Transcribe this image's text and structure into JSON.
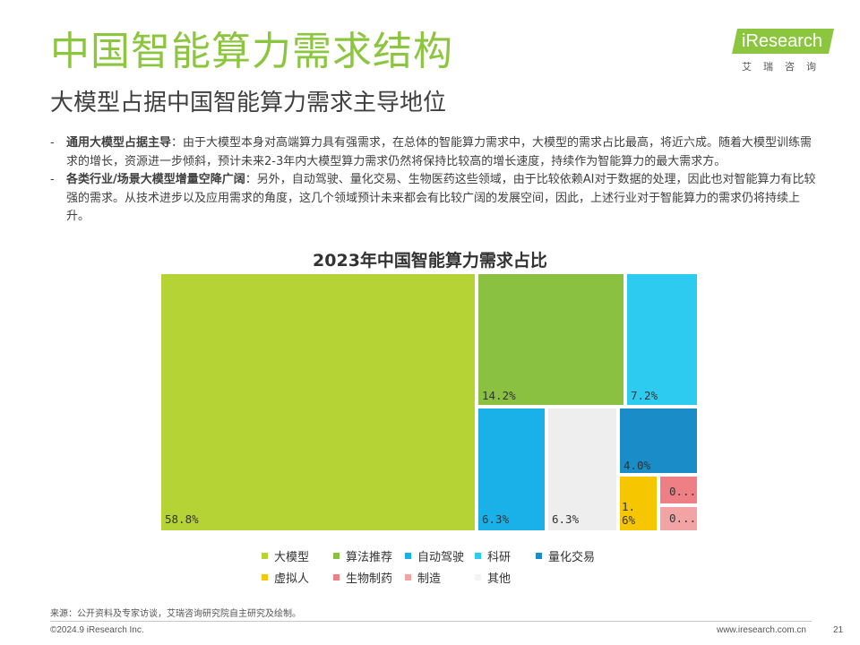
{
  "header": {
    "title": "中国智能算力需求结构",
    "subtitle": "大模型占据中国智能算力需求主导地位"
  },
  "logo": {
    "brand": "iResearch",
    "chinese": "艾瑞咨询"
  },
  "bullets": [
    {
      "dash": "-",
      "lead": "通用大模型占据主导",
      "text": "：由于大模型本身对高端算力具有强需求，在总体的智能算力需求中，大模型的需求占比最高，将近六成。随着大模型训练需求的增长，资源进一步倾斜，预计未来2-3年内大模型算力需求仍然将保持比较高的增长速度，持续作为智能算力的最大需求方。"
    },
    {
      "dash": "-",
      "lead": "各类行业/场景大模型增量空降广阔",
      "text": "：另外，自动驾驶、量化交易、生物医药这些领域，由于比较依赖AI对于数据的处理，因此也对智能算力有比较强的需求。从技术进步以及应用需求的角度，这几个领域预计未来都会有比较广阔的发展空间，因此，上述行业对于智能算力的需求仍将持续上升。"
    }
  ],
  "chart_data": {
    "type": "treemap",
    "title": "2023年中国智能算力需求占比",
    "series": [
      {
        "name": "大模型",
        "value": 58.8,
        "label": "58.8%",
        "color": "#b5d334"
      },
      {
        "name": "算法推荐",
        "value": 14.2,
        "label": "14.2%",
        "color": "#8bc140"
      },
      {
        "name": "科研",
        "value": 7.2,
        "label": "7.2%",
        "color": "#2dcbf0"
      },
      {
        "name": "自动驾驶",
        "value": 6.3,
        "label": "6.3%",
        "color": "#1ab0e8"
      },
      {
        "name": "其他",
        "value": 6.3,
        "label": "6.3%",
        "color": "#eeeeee"
      },
      {
        "name": "量化交易",
        "value": 4.0,
        "label": "4.0%",
        "color": "#1a8cc8"
      },
      {
        "name": "虚拟人",
        "value": 1.6,
        "label": "1.6%",
        "color": "#f6c600"
      },
      {
        "name": "生物制药",
        "value": 0.9,
        "label": "0...",
        "color": "#ee7f84"
      },
      {
        "name": "制造",
        "value": 0.7,
        "label": "0...",
        "color": "#f2a4a4"
      }
    ],
    "legend_rows": [
      [
        "大模型",
        "算法推荐",
        "自动驾驶",
        "科研",
        "量化交易"
      ],
      [
        "虚拟人",
        "生物制药",
        "制造",
        "其他"
      ]
    ],
    "legend_position": "bottom"
  },
  "footer": {
    "source": "来源：公开资料及专家访谈，艾瑞咨询研究院自主研究及绘制。",
    "copyright": "©2024.9 iResearch Inc.",
    "site": "www.iresearch.com.cn",
    "page": "21"
  }
}
